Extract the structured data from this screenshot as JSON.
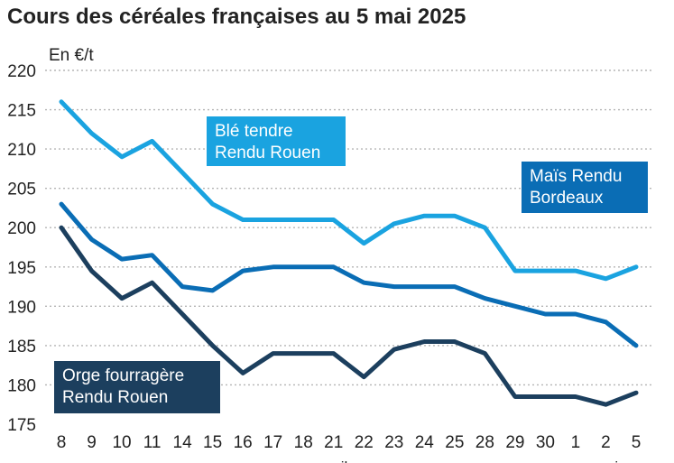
{
  "chart_data": {
    "type": "line",
    "title": "Cours des céréales françaises au 5 mai 2025",
    "unit_label": "En €/t",
    "ylim": [
      175,
      220
    ],
    "yticks": [
      175,
      180,
      185,
      190,
      195,
      200,
      205,
      210,
      215,
      220
    ],
    "grid": true,
    "categories": [
      "8",
      "9",
      "10",
      "11",
      "14",
      "15",
      "16",
      "17",
      "18",
      "21",
      "22",
      "23",
      "24",
      "25",
      "28",
      "29",
      "30",
      "1",
      "2",
      "5"
    ],
    "month_labels": [
      {
        "label": "avril",
        "at_index": 9
      },
      {
        "label": "mai",
        "at_index": 18
      }
    ],
    "series": [
      {
        "name": "Blé tendre Rendu Rouen",
        "label_lines": [
          "Blé tendre",
          "Rendu Rouen"
        ],
        "color": "#1aa3e0",
        "values": [
          216,
          212,
          209,
          211,
          207,
          203,
          201,
          201,
          201,
          201,
          198,
          200.5,
          201.5,
          201.5,
          200,
          194.5,
          194.5,
          194.5,
          193.5,
          195
        ]
      },
      {
        "name": "Maïs Rendu Bordeaux",
        "label_lines": [
          "Maïs Rendu",
          "Bordeaux"
        ],
        "color": "#0a6db5",
        "values": [
          203,
          198.5,
          196,
          196.5,
          192.5,
          192,
          194.5,
          195,
          195,
          195,
          193,
          192.5,
          192.5,
          192.5,
          191,
          190,
          189,
          189,
          188,
          185
        ]
      },
      {
        "name": "Orge fourragère Rendu Rouen",
        "label_lines": [
          "Orge fourragère",
          "Rendu Rouen"
        ],
        "color": "#1c3f5e",
        "values": [
          200,
          194.5,
          191,
          193,
          189,
          185,
          181.5,
          184,
          184,
          184,
          181,
          184.5,
          185.5,
          185.5,
          184,
          178.5,
          178.5,
          178.5,
          177.5,
          179
        ]
      }
    ]
  }
}
